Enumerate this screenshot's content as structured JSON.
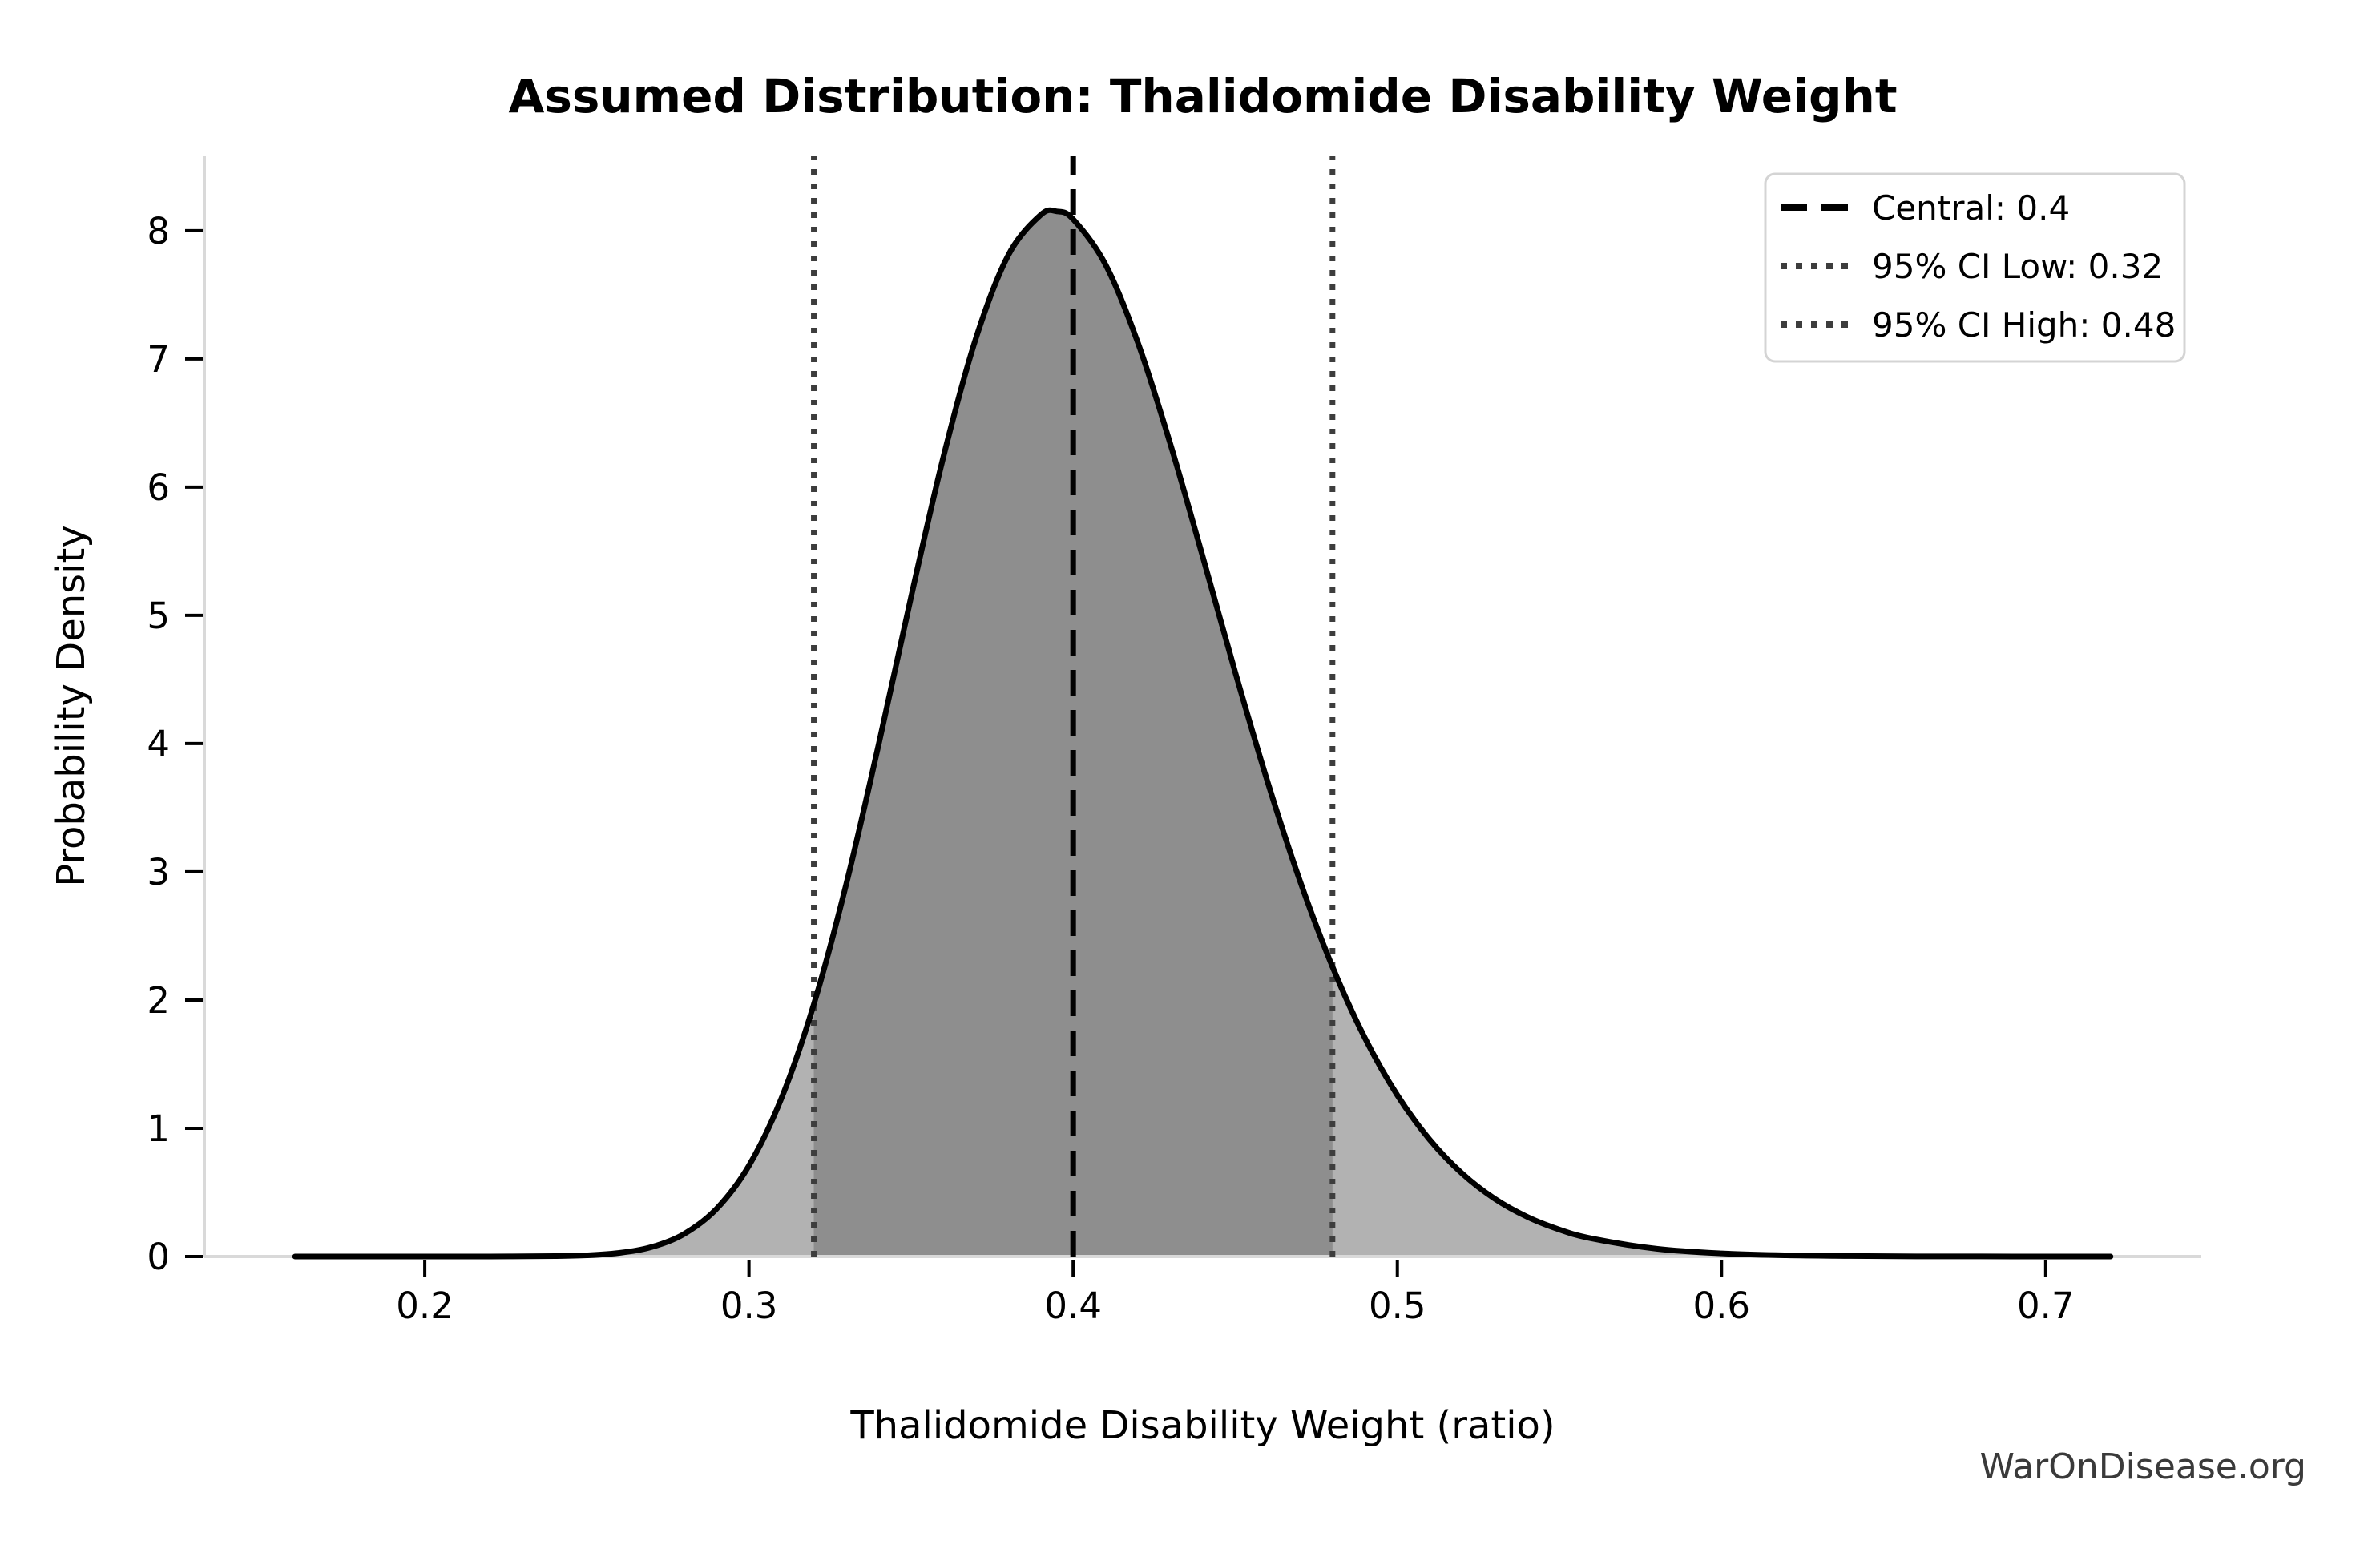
{
  "title": "Assumed Distribution: Thalidomide Disability Weight",
  "watermark": "WarOnDisease.org",
  "chart_data": {
    "type": "area",
    "title": "Assumed Distribution: Thalidomide Disability Weight",
    "xlabel": "Thalidomide Disability Weight (ratio)",
    "ylabel": "Probability Density",
    "xlim": [
      0.132,
      0.748
    ],
    "ylim": [
      0,
      8.58
    ],
    "grid": false,
    "x_ticks": [
      "0.2",
      "0.3",
      "0.4",
      "0.5",
      "0.6",
      "0.7"
    ],
    "y_ticks": [
      "0",
      "1",
      "2",
      "3",
      "4",
      "5",
      "6",
      "7",
      "8"
    ],
    "central": 0.4,
    "ci_low": 0.32,
    "ci_high": 0.48,
    "peak_density": 8.15,
    "curve": {
      "x": [
        0.16,
        0.18,
        0.2,
        0.22,
        0.24,
        0.25,
        0.26,
        0.27,
        0.28,
        0.29,
        0.3,
        0.31,
        0.32,
        0.33,
        0.34,
        0.35,
        0.36,
        0.37,
        0.38,
        0.39,
        0.395,
        0.4,
        0.41,
        0.42,
        0.43,
        0.44,
        0.45,
        0.46,
        0.47,
        0.48,
        0.49,
        0.5,
        0.51,
        0.52,
        0.53,
        0.54,
        0.55,
        0.56,
        0.58,
        0.6,
        0.62,
        0.64,
        0.66,
        0.68,
        0.7,
        0.72
      ],
      "y": [
        0,
        0,
        0,
        0.0001,
        0.003,
        0.009,
        0.028,
        0.074,
        0.176,
        0.372,
        0.709,
        1.233,
        1.966,
        2.903,
        3.992,
        5.143,
        6.238,
        7.16,
        7.809,
        8.123,
        8.15,
        8.089,
        7.735,
        7.124,
        6.335,
        5.455,
        4.556,
        3.7,
        2.927,
        2.259,
        1.704,
        1.258,
        0.911,
        0.647,
        0.451,
        0.31,
        0.21,
        0.14,
        0.06,
        0.024,
        0.009,
        0.004,
        0.001,
        0.0005,
        0.0002,
        0.0001
      ]
    },
    "colors": {
      "curve": "#000000",
      "fill": "#b2b2b2",
      "fill_ci": "#8e8e8e",
      "central_line": "#000000",
      "ci_line": "#3d3d3d",
      "spine": "#d9d9d9",
      "tick": "#000000",
      "text": "#000000",
      "watermark": "#3a3a3a",
      "legend_border": "#d4d4d4"
    },
    "legend": {
      "position": "upper right",
      "items": [
        {
          "label": "Central: 0.4",
          "style": "dashed",
          "color": "#000000"
        },
        {
          "label": "95% CI Low: 0.32",
          "style": "dotted",
          "color": "#3d3d3d"
        },
        {
          "label": "95% CI High: 0.48",
          "style": "dotted",
          "color": "#3d3d3d"
        }
      ]
    }
  }
}
